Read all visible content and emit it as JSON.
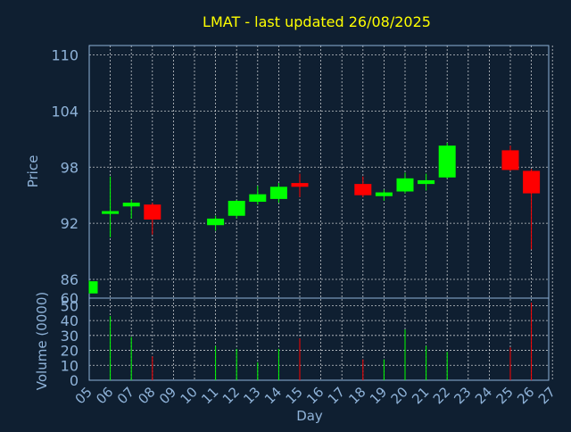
{
  "chart_data": {
    "type": "candlestick",
    "title": "LMAT - last updated 26/08/2025",
    "xlabel": "Day",
    "colors": {
      "background": "#0f1f31",
      "axis_text": "#8fb3d9",
      "title": "#ffff00",
      "up": "#00ff00",
      "down": "#ff0000",
      "grid": "#ffffff"
    },
    "x_ticks": [
      "05",
      "06",
      "07",
      "08",
      "09",
      "10",
      "11",
      "12",
      "13",
      "14",
      "15",
      "16",
      "17",
      "18",
      "19",
      "20",
      "21",
      "22",
      "23",
      "24",
      "25",
      "26",
      "27"
    ],
    "price_panel": {
      "ylabel": "Price",
      "ylim": [
        84,
        111
      ],
      "y_ticks": [
        86,
        92,
        98,
        104,
        110
      ],
      "bottom_label": "60",
      "grid": true
    },
    "volume_panel": {
      "ylabel": "Volume (0000)",
      "ylim": [
        0,
        55
      ],
      "y_ticks": [
        0,
        10,
        20,
        30,
        40,
        50
      ],
      "grid": true
    },
    "series": [
      {
        "day": "05",
        "open": 84.5,
        "high": 85.9,
        "low": 84.5,
        "close": 85.8,
        "volume": null
      },
      {
        "day": "06",
        "open": 93.0,
        "high": 97.0,
        "low": 90.5,
        "close": 93.3,
        "volume": 43
      },
      {
        "day": "07",
        "open": 93.8,
        "high": 94.5,
        "low": 92.5,
        "close": 94.2,
        "volume": 29
      },
      {
        "day": "08",
        "open": 94.0,
        "high": 94.2,
        "low": 90.8,
        "close": 92.4,
        "volume": 16
      },
      {
        "day": "11",
        "open": 91.8,
        "high": 92.8,
        "low": 91.2,
        "close": 92.5,
        "volume": 23
      },
      {
        "day": "12",
        "open": 92.8,
        "high": 94.5,
        "low": 92.5,
        "close": 94.4,
        "volume": 21
      },
      {
        "day": "13",
        "open": 94.3,
        "high": 96.0,
        "low": 94.0,
        "close": 95.1,
        "volume": 12
      },
      {
        "day": "14",
        "open": 94.6,
        "high": 96.3,
        "low": 94.2,
        "close": 95.9,
        "volume": 21
      },
      {
        "day": "15",
        "open": 96.3,
        "high": 97.3,
        "low": 94.8,
        "close": 95.9,
        "volume": 28
      },
      {
        "day": "18",
        "open": 96.2,
        "high": 97.0,
        "low": 94.8,
        "close": 95.0,
        "volume": 14
      },
      {
        "day": "19",
        "open": 94.9,
        "high": 95.6,
        "low": 94.4,
        "close": 95.3,
        "volume": 14
      },
      {
        "day": "20",
        "open": 95.4,
        "high": 97.4,
        "low": 95.2,
        "close": 96.8,
        "volume": 34
      },
      {
        "day": "21",
        "open": 96.2,
        "high": 97.3,
        "low": 95.5,
        "close": 96.6,
        "volume": 23
      },
      {
        "day": "22",
        "open": 96.9,
        "high": 100.6,
        "low": 96.8,
        "close": 100.3,
        "volume": 19
      },
      {
        "day": "25",
        "open": 99.8,
        "high": 100.3,
        "low": 97.6,
        "close": 97.7,
        "volume": 22
      },
      {
        "day": "26",
        "open": 97.6,
        "high": 97.8,
        "low": 89.2,
        "close": 95.2,
        "volume": 52
      }
    ]
  }
}
